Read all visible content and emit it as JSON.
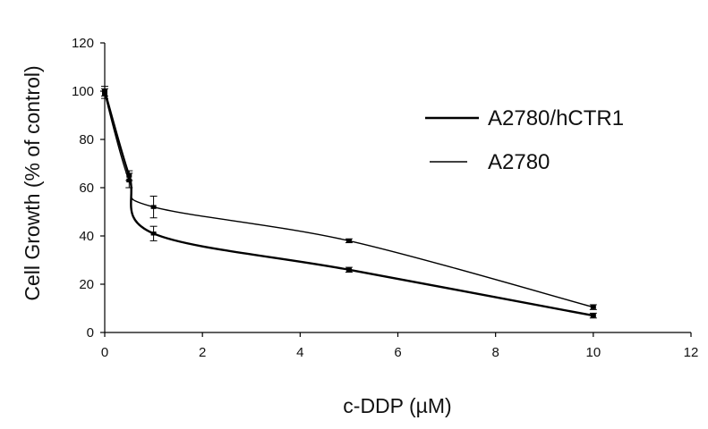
{
  "chart_data": {
    "type": "line",
    "title": "",
    "xlabel": "c-DDP (µM)",
    "ylabel": "Cell Growth (% of control)",
    "xlim": [
      0,
      12
    ],
    "ylim": [
      0,
      120
    ],
    "x_ticks": [
      0,
      2,
      4,
      6,
      8,
      10,
      12
    ],
    "y_ticks": [
      0,
      20,
      40,
      60,
      80,
      100,
      120
    ],
    "grid": false,
    "legend_position": "top-right",
    "line_color": "#000000",
    "series": [
      {
        "name": "A2780/hCTR1",
        "line_style": "thick",
        "x": [
          0,
          0.5,
          1,
          5,
          10
        ],
        "y": [
          100,
          65,
          41,
          26,
          7
        ],
        "error": [
          2,
          2,
          3,
          1,
          1
        ]
      },
      {
        "name": "A2780",
        "line_style": "thin",
        "x": [
          0,
          0.5,
          1,
          5,
          10
        ],
        "y": [
          99,
          63,
          52,
          38,
          10.5
        ],
        "error": [
          2,
          3,
          4.5,
          0.8,
          1
        ]
      }
    ]
  }
}
